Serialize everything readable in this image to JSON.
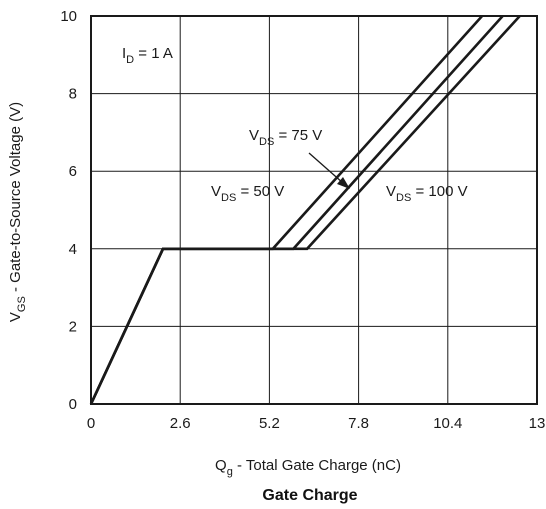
{
  "chart_data": {
    "type": "line",
    "caption": "Gate Charge",
    "xlabel": {
      "main": "Q",
      "sub": "g",
      "rest": " - Total Gate Charge (nC)"
    },
    "ylabel": {
      "main": "V",
      "sub": "GS",
      "rest": " - Gate-to-Source Voltage (V)"
    },
    "xlim": [
      0,
      13
    ],
    "ylim": [
      0,
      10
    ],
    "xticks": [
      "0",
      "2.6",
      "5.2",
      "7.8",
      "10.4",
      "13"
    ],
    "yticks": [
      "0",
      "2",
      "4",
      "6",
      "8",
      "10"
    ],
    "grid": true,
    "series": [
      {
        "id": "vds50",
        "x": [
          0,
          2.1,
          5.3,
          11.4
        ],
        "y": [
          0,
          4,
          4,
          10
        ]
      },
      {
        "id": "vds75",
        "x": [
          0,
          2.1,
          5.9,
          12.0
        ],
        "y": [
          0,
          4,
          4,
          10
        ]
      },
      {
        "id": "vds100",
        "x": [
          0,
          2.1,
          6.3,
          12.5
        ],
        "y": [
          0,
          4,
          4,
          10
        ]
      }
    ],
    "annotations": {
      "id": {
        "main": "I",
        "sub": "D",
        "rest": " = 1 A"
      },
      "vds75": {
        "main": "V",
        "sub": "DS",
        "rest": " = 75 V"
      },
      "vds50": {
        "main": "V",
        "sub": "DS",
        "rest": " = 50 V"
      },
      "vds100": {
        "main": "V",
        "sub": "DS",
        "rest": " = 100 V"
      }
    },
    "colors": {
      "line": "#1a1a1a",
      "grid": "#1a1a1a",
      "background": "#ffffff"
    }
  }
}
